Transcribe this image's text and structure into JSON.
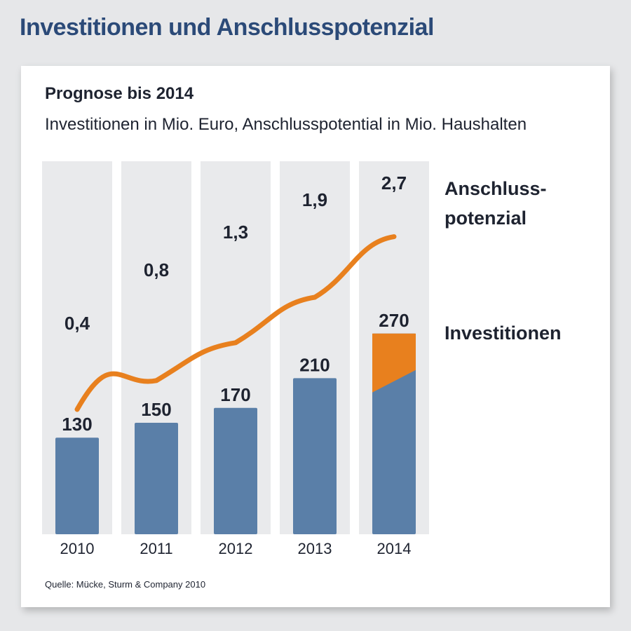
{
  "page_title": "Investitionen und Anschlusspotenzial",
  "chart_data": {
    "type": "bar",
    "title": "Prognose bis 2014",
    "subtitle": "Investitionen in Mio. Euro, Anschlusspotential in Mio. Haushalten",
    "categories": [
      "2010",
      "2011",
      "2012",
      "2013",
      "2014"
    ],
    "series": [
      {
        "name": "Investitionen",
        "type": "bar",
        "values": [
          130,
          150,
          170,
          210,
          270
        ],
        "labels": [
          "130",
          "150",
          "170",
          "210",
          "270"
        ],
        "color": "#5a7fa8"
      },
      {
        "name": "Anschluss-potenzial",
        "type": "line",
        "values": [
          0.4,
          0.8,
          1.3,
          1.9,
          2.7
        ],
        "labels": [
          "0,4",
          "0,8",
          "1,3",
          "1,9",
          "2,7"
        ],
        "color": "#e8801e"
      }
    ],
    "legend": {
      "line_label_lines": [
        "Anschluss-",
        "potenzial"
      ],
      "bar_label": "Investitionen",
      "placement": "right"
    },
    "highlight_color": "#e8801e",
    "column_background": "#e9eaec"
  },
  "source": "Quelle: Mücke, Sturm & Company 2010"
}
